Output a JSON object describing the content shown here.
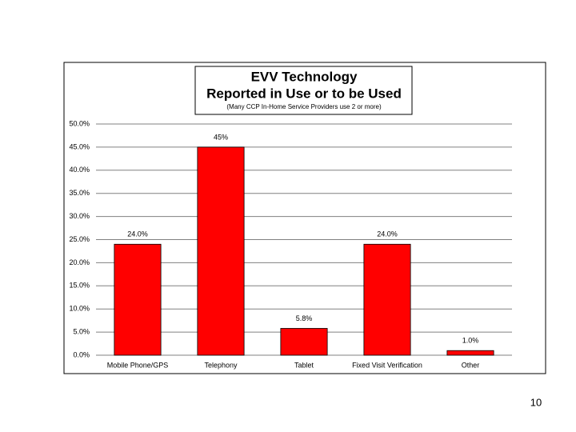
{
  "chart_data": {
    "type": "bar",
    "title": "EVV Technology",
    "title_line2": "Reported  in Use or to be Used",
    "subtitle": "(Many CCP In-Home Service Providers use 2 or more)",
    "categories": [
      "Mobile Phone/GPS",
      "Telephony",
      "Tablet",
      "Fixed Visit Verification",
      "Other"
    ],
    "values": [
      24,
      45,
      5.8,
      24,
      1
    ],
    "value_labels": [
      "24.0%",
      "45%",
      "5.8%",
      "24.0%",
      "1.0%"
    ],
    "color": "#ff0000",
    "ylim": [
      0,
      50
    ],
    "yticks": [
      {
        "value": 0,
        "label": "0.0%"
      },
      {
        "value": 5,
        "label": "5.0%"
      },
      {
        "value": 10,
        "label": "10.0%"
      },
      {
        "value": 15,
        "label": "15.0%"
      },
      {
        "value": 20,
        "label": "20.0%"
      },
      {
        "value": 25,
        "label": "25.0%"
      },
      {
        "value": 30,
        "label": "30.0%"
      },
      {
        "value": 35,
        "label": "35.0%"
      },
      {
        "value": 40,
        "label": "40.0%"
      },
      {
        "value": 45,
        "label": "45.0%"
      },
      {
        "value": 50,
        "label": "50.0%"
      }
    ],
    "grid": true
  },
  "slide_number": "10"
}
